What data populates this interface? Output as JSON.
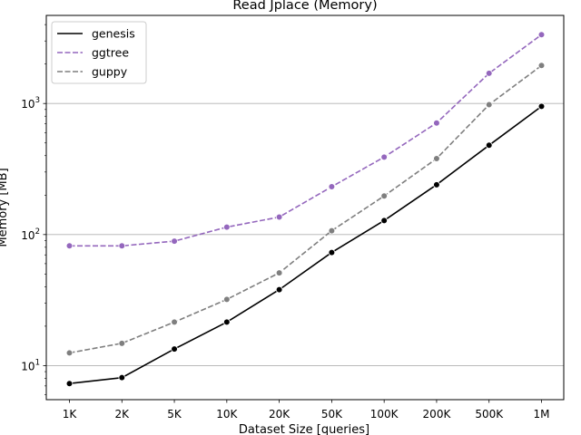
{
  "chart_data": {
    "type": "line",
    "title": "Read Jplace  (Memory)",
    "xlabel": "Dataset Size  [queries]",
    "ylabel": "Memory  [MB]",
    "yscale": "log",
    "ylim": [
      5.5,
      4700
    ],
    "categories": [
      "1K",
      "2K",
      "5K",
      "10K",
      "20K",
      "50K",
      "100K",
      "200K",
      "500K",
      "1M"
    ],
    "y_ticks": [
      {
        "value": 10,
        "base": "10",
        "exp": "1"
      },
      {
        "value": 100,
        "base": "10",
        "exp": "2"
      },
      {
        "value": 1000,
        "base": "10",
        "exp": "3"
      }
    ],
    "grid": "horizontal major",
    "legend_position": "top-left",
    "series": [
      {
        "name": "genesis",
        "color": "#000000",
        "dash": "solid",
        "values": [
          7.3,
          8.1,
          13.4,
          21.5,
          38,
          73,
          128,
          240,
          480,
          950
        ]
      },
      {
        "name": "ggtree",
        "color": "#9467bd",
        "dash": "dashed",
        "values": [
          82,
          82,
          89,
          114,
          136,
          232,
          390,
          710,
          1700,
          3350
        ]
      },
      {
        "name": "guppy",
        "color": "#7f7f7f",
        "dash": "dashed",
        "values": [
          12.5,
          14.8,
          21.5,
          32,
          51,
          107,
          197,
          380,
          980,
          1950
        ]
      }
    ]
  }
}
